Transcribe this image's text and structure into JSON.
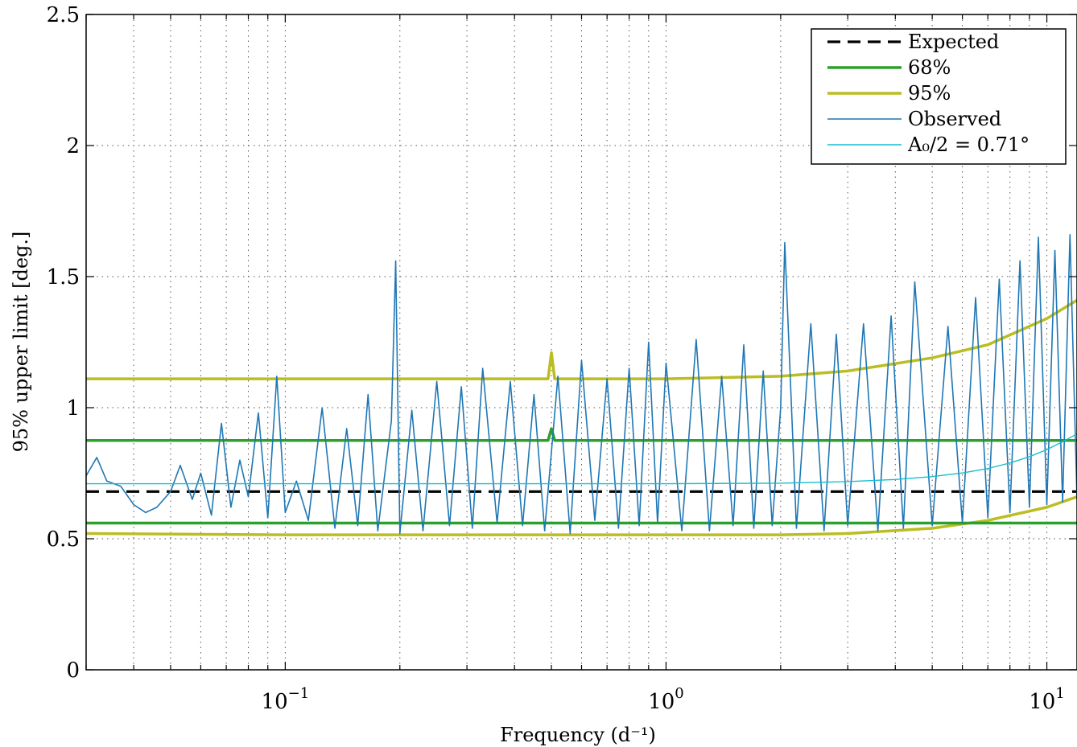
{
  "chart_data": {
    "type": "line",
    "xscale": "log",
    "xlabel": "Frequency (d⁻¹)",
    "ylabel": "95% upper limit [deg.]",
    "xlim": [
      0.03,
      12
    ],
    "ylim": [
      0,
      2.5
    ],
    "xticks": [
      {
        "value": 0.1,
        "base": "10",
        "exp": "−1"
      },
      {
        "value": 1,
        "base": "10",
        "exp": "0"
      },
      {
        "value": 10,
        "base": "10",
        "exp": "1"
      }
    ],
    "yticks": [
      {
        "value": 0,
        "label": "0"
      },
      {
        "value": 0.5,
        "label": "0.5"
      },
      {
        "value": 1,
        "label": "1"
      },
      {
        "value": 1.5,
        "label": "1.5"
      },
      {
        "value": 2,
        "label": "2"
      },
      {
        "value": 2.5,
        "label": "2.5"
      }
    ],
    "grid": true,
    "legend_position": "top-right",
    "series": [
      {
        "name": "Expected",
        "style": "dashed",
        "color": "#000000",
        "x": [
          0.03,
          0.1,
          0.3,
          1,
          2,
          3,
          5,
          7,
          10,
          12
        ],
        "y": [
          0.68,
          0.68,
          0.68,
          0.68,
          0.68,
          0.68,
          0.68,
          0.68,
          0.68,
          0.68
        ]
      },
      {
        "name": "68%",
        "style": "solid",
        "color": "#2ca02c",
        "bands": [
          {
            "x": [
              0.03,
              0.1,
              0.3,
              0.49,
              0.5,
              0.51,
              1,
              2,
              3,
              5,
              7,
              10,
              12
            ],
            "y": [
              0.875,
              0.875,
              0.875,
              0.875,
              0.92,
              0.875,
              0.875,
              0.875,
              0.875,
              0.875,
              0.875,
              0.875,
              0.875
            ]
          },
          {
            "x": [
              0.03,
              0.1,
              0.3,
              1,
              2,
              3,
              5,
              7,
              10,
              12
            ],
            "y": [
              0.56,
              0.56,
              0.56,
              0.56,
              0.56,
              0.56,
              0.56,
              0.56,
              0.56,
              0.56
            ]
          }
        ]
      },
      {
        "name": "95%",
        "style": "solid",
        "color": "#bcbd22",
        "bands": [
          {
            "x": [
              0.03,
              0.1,
              0.3,
              0.49,
              0.5,
              0.51,
              1,
              2,
              3,
              5,
              7,
              10,
              12
            ],
            "y": [
              1.11,
              1.11,
              1.11,
              1.11,
              1.21,
              1.11,
              1.11,
              1.12,
              1.14,
              1.19,
              1.24,
              1.34,
              1.41
            ]
          },
          {
            "x": [
              0.03,
              0.1,
              0.3,
              1,
              2,
              3,
              5,
              7,
              10,
              12
            ],
            "y": [
              0.52,
              0.515,
              0.515,
              0.515,
              0.515,
              0.52,
              0.54,
              0.57,
              0.62,
              0.66
            ]
          }
        ]
      },
      {
        "name": "Observed",
        "style": "solid",
        "color": "#1f77b4",
        "x": [
          0.03,
          0.032,
          0.034,
          0.037,
          0.04,
          0.043,
          0.046,
          0.05,
          0.053,
          0.057,
          0.06,
          0.064,
          0.068,
          0.072,
          0.076,
          0.08,
          0.085,
          0.09,
          0.095,
          0.1,
          0.107,
          0.115,
          0.125,
          0.135,
          0.145,
          0.155,
          0.165,
          0.175,
          0.19,
          0.195,
          0.2,
          0.215,
          0.23,
          0.25,
          0.27,
          0.29,
          0.31,
          0.33,
          0.36,
          0.39,
          0.42,
          0.45,
          0.48,
          0.52,
          0.56,
          0.6,
          0.65,
          0.7,
          0.75,
          0.8,
          0.85,
          0.9,
          0.95,
          1.0,
          1.1,
          1.2,
          1.3,
          1.4,
          1.5,
          1.6,
          1.7,
          1.8,
          1.9,
          2.0,
          2.05,
          2.2,
          2.4,
          2.6,
          2.8,
          3.0,
          3.3,
          3.6,
          3.9,
          4.2,
          4.5,
          5.0,
          5.5,
          6.0,
          6.5,
          7.0,
          7.5,
          8.0,
          8.5,
          9.0,
          9.5,
          10.0,
          10.5,
          11.0,
          11.5,
          12.0
        ],
        "y": [
          0.74,
          0.81,
          0.72,
          0.7,
          0.63,
          0.6,
          0.62,
          0.68,
          0.78,
          0.65,
          0.75,
          0.59,
          0.94,
          0.62,
          0.8,
          0.66,
          0.98,
          0.58,
          1.12,
          0.6,
          0.72,
          0.57,
          1.0,
          0.54,
          0.92,
          0.55,
          1.05,
          0.53,
          0.95,
          1.56,
          0.52,
          0.99,
          0.53,
          1.1,
          0.55,
          1.08,
          0.54,
          1.15,
          0.56,
          1.1,
          0.55,
          1.05,
          0.53,
          1.12,
          0.52,
          1.18,
          0.57,
          1.11,
          0.54,
          1.15,
          0.55,
          1.25,
          0.56,
          1.17,
          0.53,
          1.26,
          0.53,
          1.12,
          0.55,
          1.24,
          0.54,
          1.14,
          0.55,
          1.0,
          1.63,
          0.54,
          1.32,
          0.53,
          1.28,
          0.55,
          1.32,
          0.53,
          1.35,
          0.54,
          1.48,
          0.55,
          1.31,
          0.56,
          1.42,
          0.58,
          1.49,
          0.6,
          1.56,
          0.62,
          1.65,
          0.63,
          1.6,
          0.64,
          1.66,
          0.65
        ]
      },
      {
        "name": "A₀/2 = 0.71°",
        "style": "solid",
        "color": "#17becf",
        "x": [
          0.03,
          0.1,
          0.3,
          1,
          2,
          3,
          4,
          5,
          6,
          7,
          8,
          9,
          10,
          11,
          12
        ],
        "y": [
          0.71,
          0.71,
          0.71,
          0.71,
          0.712,
          0.718,
          0.726,
          0.737,
          0.751,
          0.768,
          0.789,
          0.813,
          0.84,
          0.87,
          0.9
        ]
      }
    ]
  }
}
